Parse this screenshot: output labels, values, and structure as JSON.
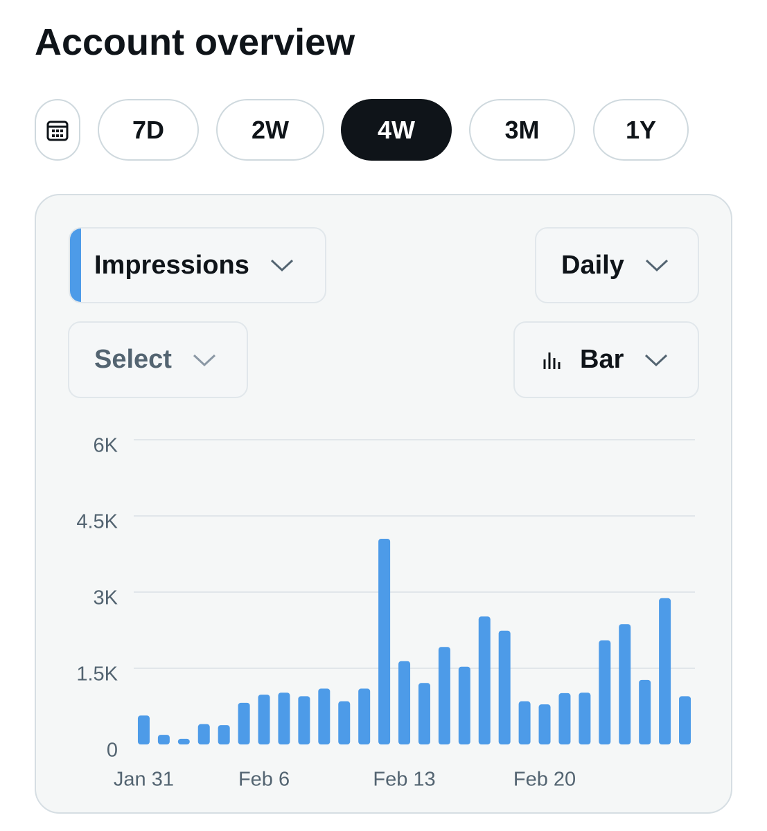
{
  "page_title": "Account overview",
  "range_buttons": [
    "7D",
    "2W",
    "4W",
    "3M",
    "1Y"
  ],
  "controls": {
    "metric": "Impressions",
    "interval": "Daily",
    "compare": "Select",
    "chart_kind": "Bar"
  },
  "chart_data": {
    "type": "bar",
    "color": "#4d9be8",
    "grid": true,
    "categories": [
      "Jan 31",
      null,
      null,
      null,
      null,
      null,
      "Feb 6",
      null,
      null,
      null,
      null,
      null,
      null,
      "Feb 13",
      null,
      null,
      null,
      null,
      null,
      null,
      "Feb 20",
      null,
      null,
      null,
      null,
      null,
      null,
      null
    ],
    "values": [
      570,
      190,
      110,
      400,
      380,
      820,
      980,
      1020,
      950,
      1100,
      850,
      1100,
      4050,
      1640,
      1210,
      1920,
      1530,
      2520,
      2240,
      850,
      790,
      1010,
      1020,
      2050,
      2370,
      1270,
      2880,
      950
    ],
    "ylim": [
      0,
      6000
    ],
    "yticks": [
      0,
      {
        "value": 1500,
        "label": "1.5K"
      },
      {
        "value": 3000,
        "label": "3K"
      },
      {
        "value": 4500,
        "label": "4.5K"
      },
      {
        "value": 6000,
        "label": "6K"
      }
    ]
  }
}
